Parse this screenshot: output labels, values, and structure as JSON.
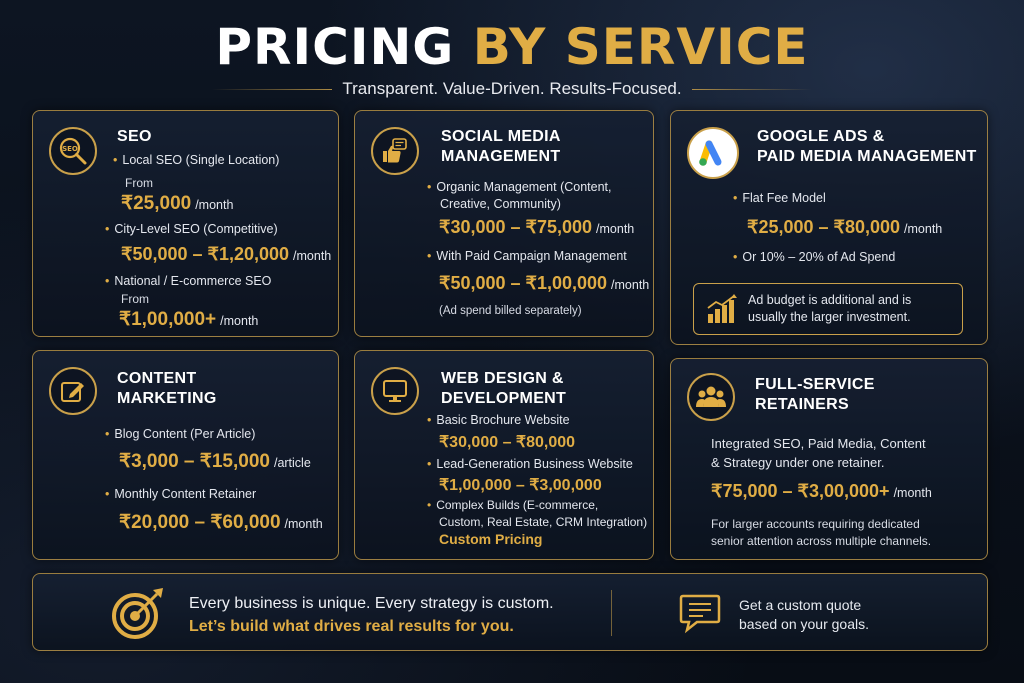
{
  "header": {
    "title_part1": "PRICING",
    "title_part2": "BY SERVICE",
    "subtitle": "Transparent. Value-Driven. Results-Focused."
  },
  "icons": {
    "seo": "magnifier-seo-icon",
    "social": "thumbs-up-chat-icon",
    "google_ads": "google-ads-logo",
    "content": "edit-pencil-icon",
    "web": "monitor-icon",
    "retainers": "team-icon",
    "ad_budget": "growth-chart-icon",
    "banner_target": "target-arrow-icon",
    "banner_chat": "chat-bubble-icon"
  },
  "colors": {
    "accent": "#e0ad45",
    "background": "#0b111b",
    "text": "#ffffff"
  },
  "seo": {
    "title": "SEO",
    "item1": "Local SEO (Single Location)",
    "item1_from": "From",
    "item1_price": "₹25,000",
    "item1_unit": "/month",
    "item2": "City-Level SEO (Competitive)",
    "item2_price": "₹50,000 – ₹1,20,000",
    "item2_unit": "/month",
    "item3": "National / E-commerce SEO",
    "item3_from": "From",
    "item3_price": "₹1,00,000+",
    "item3_unit": "/month"
  },
  "social": {
    "title_line1": "SOCIAL MEDIA",
    "title_line2": "MANAGEMENT",
    "item1_line1": "Organic Management (Content,",
    "item1_line2": "Creative, Community)",
    "item1_price": "₹30,000 – ₹75,000",
    "item1_unit": "/month",
    "item2": "With Paid Campaign Management",
    "item2_price": "₹50,000 – ₹1,00,000",
    "item2_unit": "/month",
    "note": "(Ad spend billed separately)"
  },
  "google_ads": {
    "title_line1": "GOOGLE ADS &",
    "title_line2": "PAID MEDIA MANAGEMENT",
    "item1": "Flat Fee Model",
    "item1_price": "₹25,000 – ₹80,000",
    "item1_unit": "/month",
    "item2": "Or 10% – 20% of Ad Spend",
    "callout_line1": "Ad budget is additional and is",
    "callout_line2": "usually the larger investment."
  },
  "content": {
    "title_line1": "CONTENT",
    "title_line2": "MARKETING",
    "item1": "Blog Content (Per Article)",
    "item1_price": "₹3,000 – ₹15,000",
    "item1_unit": "/article",
    "item2": "Monthly Content Retainer",
    "item2_price": "₹20,000 – ₹60,000",
    "item2_unit": "/month"
  },
  "web": {
    "title_line1": "WEB DESIGN &",
    "title_line2": "DEVELOPMENT",
    "item1": "Basic Brochure Website",
    "item1_price": "₹30,000 – ₹80,000",
    "item2": "Lead-Generation Business Website",
    "item2_price": "₹1,00,000 – ₹3,00,000",
    "item3_line1": "Complex Builds (E-commerce,",
    "item3_line2": "Custom, Real Estate, CRM Integration)",
    "item3_price": "Custom Pricing"
  },
  "retainers": {
    "title_line1": "FULL-SERVICE",
    "title_line2": "RETAINERS",
    "desc_line1": "Integrated SEO, Paid Media, Content",
    "desc_line2": "& Strategy under one retainer.",
    "price": "₹75,000 – ₹3,00,000+",
    "unit": "/month",
    "note_line1": "For larger accounts requiring dedicated",
    "note_line2": "senior attention across multiple channels."
  },
  "banner": {
    "line1": "Every business is unique. Every strategy is custom.",
    "line2": "Let’s build what drives real results for you.",
    "quote_line1": "Get a custom quote",
    "quote_line2": "based on your goals."
  }
}
